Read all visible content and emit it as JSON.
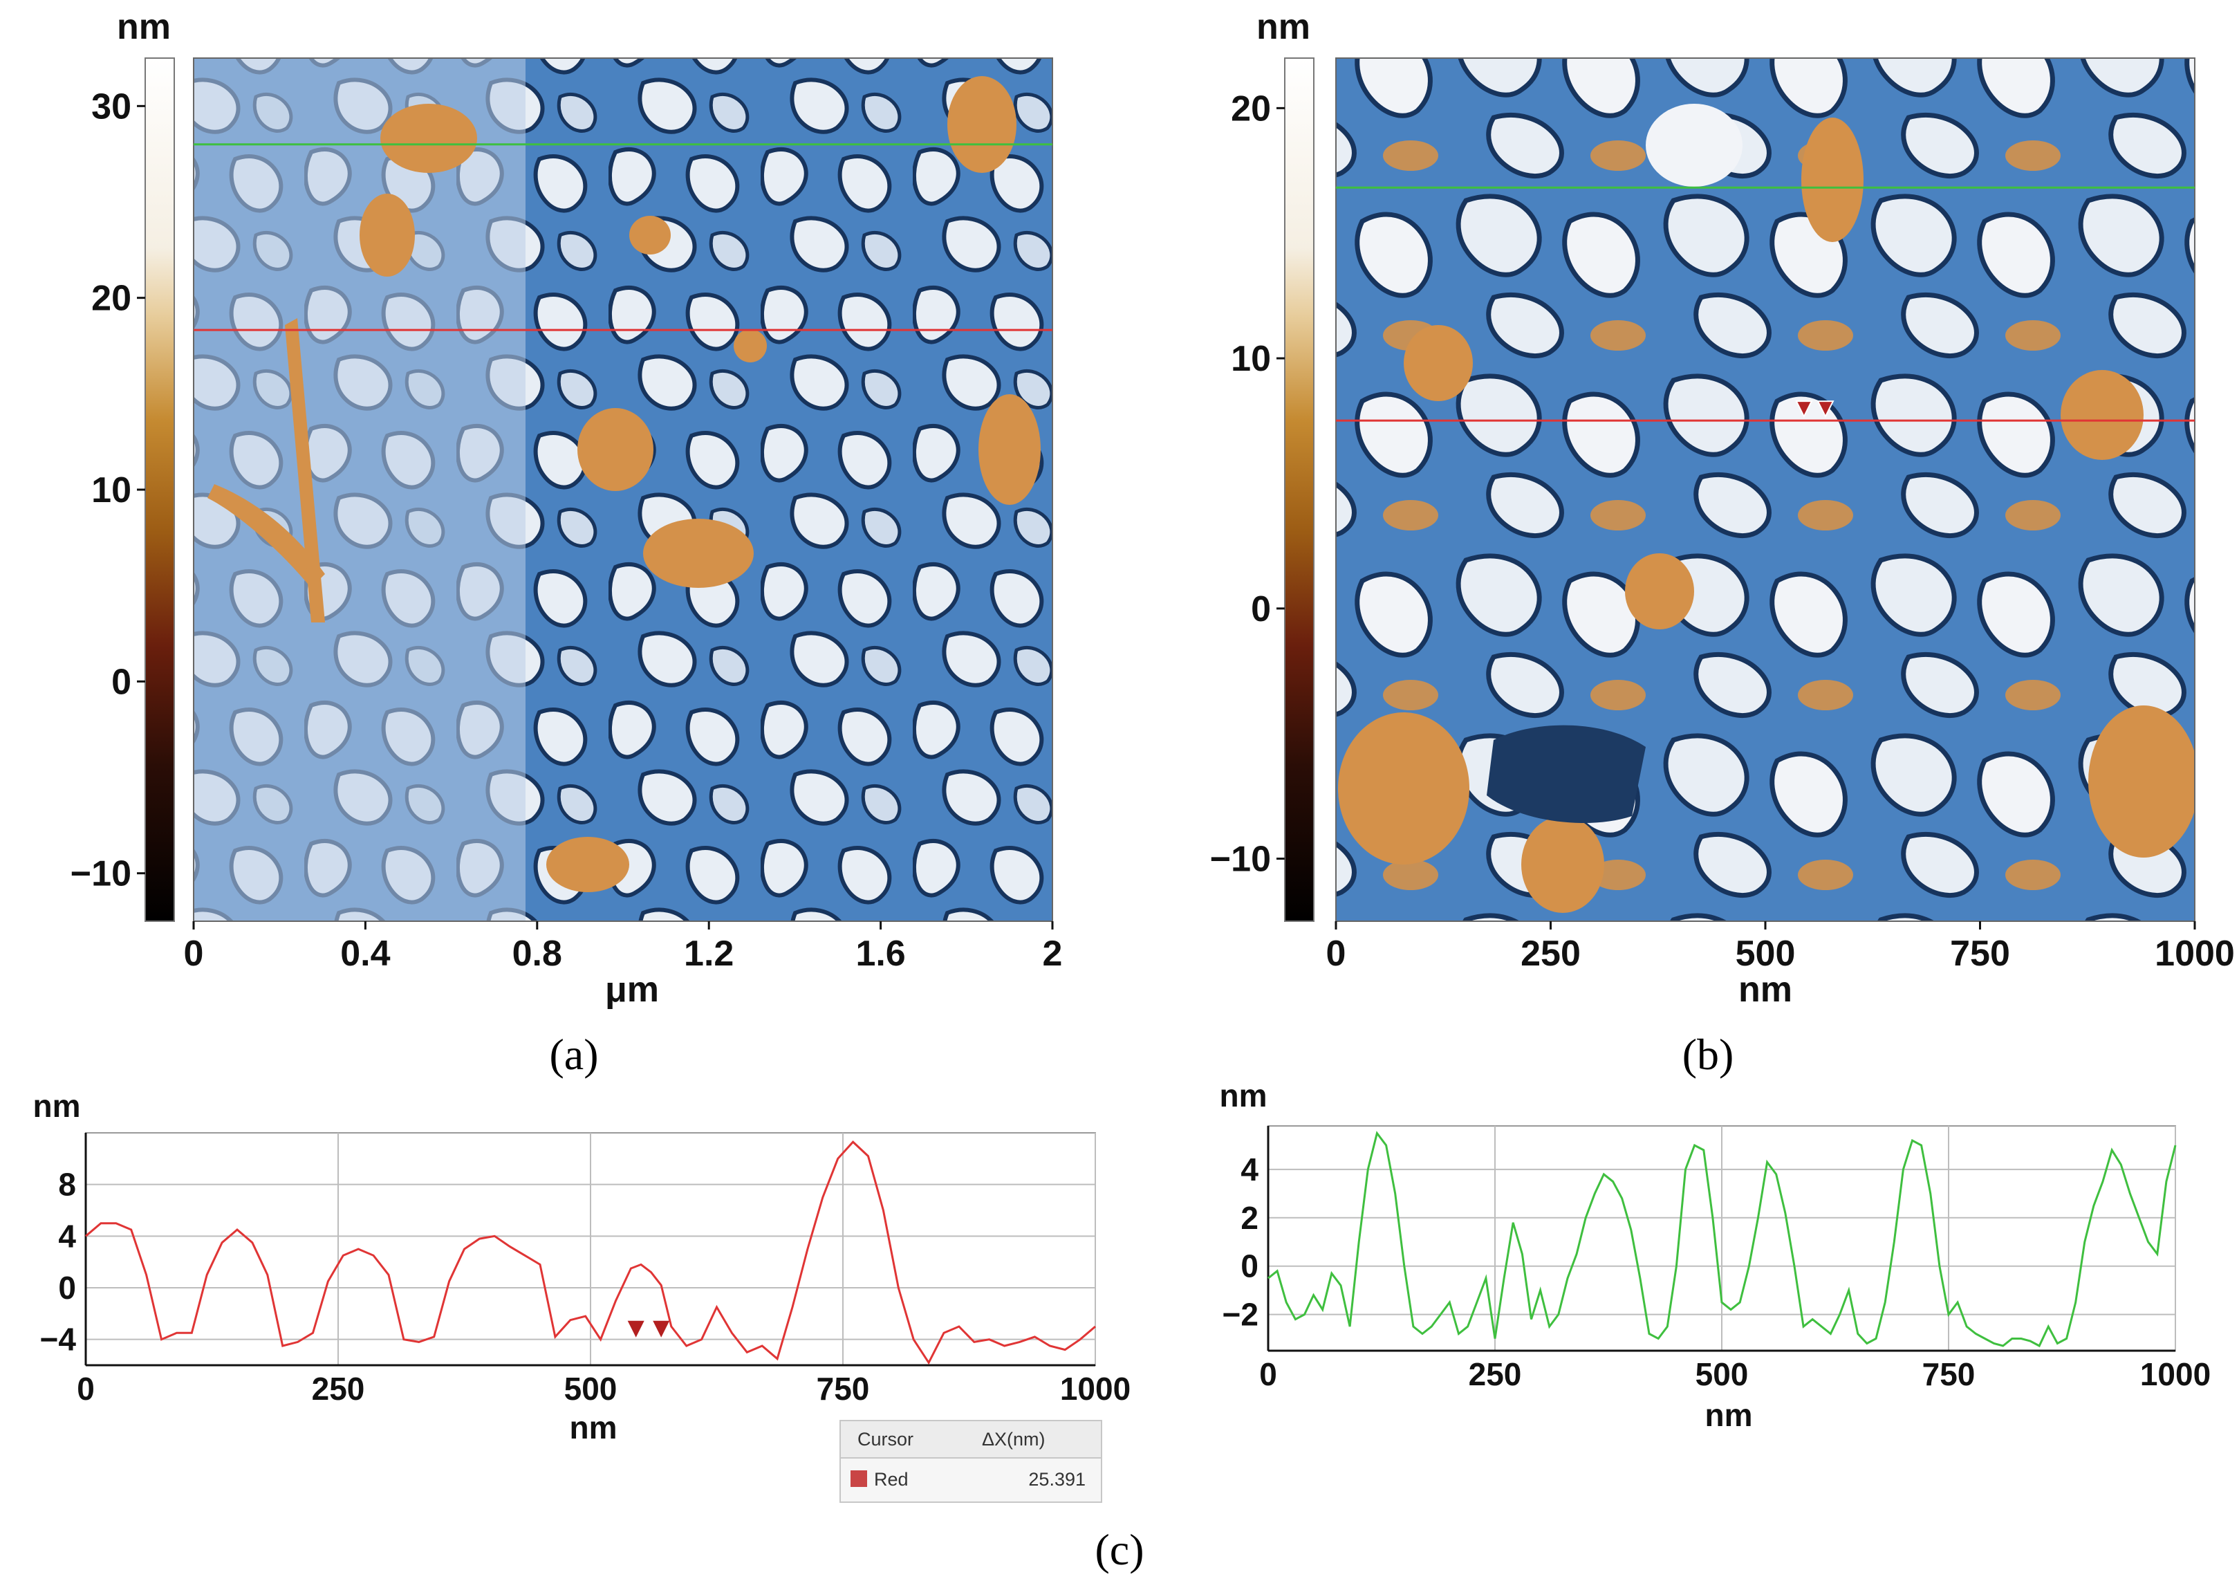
{
  "figure": {
    "panel_labels": [
      "(a)",
      "(b)",
      "(c)"
    ],
    "colors": {
      "afm_blue": "#4a82c0",
      "afm_dark_blue": "#17345d",
      "afm_light": "#e8eef5",
      "afm_orange": "#d4914a",
      "red_line": "#e03535",
      "green_line": "#3fbf3f",
      "grid": "#bdbdbd"
    }
  },
  "chart_data": [
    {
      "id": "a",
      "type": "heatmap",
      "title": "",
      "xlabel": "μm",
      "colorbar_label": "nm",
      "x_ticks": [
        "0",
        "0.4",
        "0.8",
        "1.2",
        "1.6",
        "2"
      ],
      "x_tick_values": [
        0,
        0.4,
        0.8,
        1.2,
        1.6,
        2.0
      ],
      "xlim": [
        0,
        2
      ],
      "colorbar_ticks": [
        "30",
        "20",
        "10",
        "0",
        "−10"
      ],
      "colorbar_tick_values": [
        30,
        20,
        10,
        0,
        -10
      ],
      "colorbar_range": [
        -12.5,
        32.5
      ],
      "red_profile_line_fraction_from_top": 0.315,
      "green_profile_line_fraction_from_top": 0.1
    },
    {
      "id": "b",
      "type": "heatmap",
      "title": "",
      "xlabel": "nm",
      "colorbar_label": "nm",
      "x_ticks": [
        "0",
        "250",
        "500",
        "750",
        "1000"
      ],
      "x_tick_values": [
        0,
        250,
        500,
        750,
        1000
      ],
      "xlim": [
        0,
        1000
      ],
      "colorbar_ticks": [
        "20",
        "10",
        "0",
        "−10"
      ],
      "colorbar_tick_values": [
        20,
        10,
        0,
        -10
      ],
      "colorbar_range": [
        -12.5,
        22
      ],
      "red_profile_line_fraction_from_top": 0.42,
      "green_profile_line_fraction_from_top": 0.15,
      "cursor_markers_nm": [
        545,
        570
      ]
    },
    {
      "id": "c-left",
      "type": "line",
      "title": "",
      "xlabel": "nm",
      "ylabel": "nm",
      "x_ticks": [
        "0",
        "250",
        "500",
        "750",
        "1000"
      ],
      "x_tick_values": [
        0,
        250,
        500,
        750,
        1000
      ],
      "y_ticks": [
        "8",
        "4",
        "0",
        "−4"
      ],
      "y_tick_values": [
        8,
        4,
        0,
        -4
      ],
      "xlim": [
        0,
        1000
      ],
      "ylim": [
        -6,
        12
      ],
      "grid": true,
      "series": [
        {
          "name": "Red",
          "color": "#e03535",
          "x": [
            0,
            15,
            30,
            45,
            60,
            75,
            90,
            105,
            120,
            135,
            150,
            165,
            180,
            195,
            210,
            225,
            240,
            255,
            270,
            285,
            300,
            315,
            330,
            345,
            360,
            375,
            390,
            405,
            420,
            435,
            450,
            465,
            480,
            495,
            510,
            525,
            540,
            550,
            560,
            570,
            580,
            595,
            610,
            625,
            640,
            655,
            670,
            685,
            700,
            715,
            730,
            745,
            760,
            775,
            790,
            805,
            820,
            835,
            850,
            865,
            880,
            895,
            910,
            925,
            940,
            955,
            970,
            985,
            1000
          ],
          "y": [
            4,
            5,
            5,
            4.5,
            1,
            -4,
            -3.5,
            -3.5,
            1,
            3.5,
            4.5,
            3.5,
            1,
            -4.5,
            -4.2,
            -3.5,
            0.5,
            2.5,
            3,
            2.5,
            1,
            -4,
            -4.2,
            -3.8,
            0.5,
            3,
            3.8,
            4,
            3.2,
            2.5,
            1.8,
            -3.8,
            -2.5,
            -2.2,
            -4,
            -1,
            1.5,
            1.8,
            1.2,
            0.2,
            -3,
            -4.5,
            -4,
            -1.5,
            -3.5,
            -5,
            -4.5,
            -5.5,
            -1.5,
            3,
            7,
            10,
            11.3,
            10.2,
            6,
            0,
            -4,
            -5.8,
            -3.5,
            -3,
            -4.2,
            -4,
            -4.5,
            -4.2,
            -3.8,
            -4.5,
            -4.8,
            -4,
            -3
          ],
          "points_note": "dense line"
        }
      ],
      "cursor_markers_nm": [
        545,
        570
      ],
      "cursor_table": {
        "headers": [
          "Cursor",
          "ΔX(nm)"
        ],
        "row": {
          "name": "Red",
          "value": "25.391"
        }
      }
    },
    {
      "id": "c-right",
      "type": "line",
      "title": "",
      "xlabel": "nm",
      "ylabel": "nm",
      "x_ticks": [
        "0",
        "250",
        "500",
        "750",
        "1000"
      ],
      "x_tick_values": [
        0,
        250,
        500,
        750,
        1000
      ],
      "y_ticks": [
        "4",
        "2",
        "0",
        "−2"
      ],
      "y_tick_values": [
        4,
        2,
        0,
        -2
      ],
      "xlim": [
        0,
        1000
      ],
      "ylim": [
        -3.5,
        5.8
      ],
      "grid": true,
      "series": [
        {
          "name": "Green",
          "color": "#3fbf3f",
          "x": [
            0,
            10,
            20,
            30,
            40,
            50,
            60,
            70,
            80,
            90,
            100,
            110,
            120,
            130,
            140,
            150,
            160,
            170,
            180,
            190,
            200,
            210,
            220,
            230,
            240,
            250,
            260,
            270,
            280,
            290,
            300,
            310,
            320,
            330,
            340,
            350,
            360,
            370,
            380,
            390,
            400,
            410,
            420,
            430,
            440,
            450,
            460,
            470,
            480,
            490,
            500,
            510,
            520,
            530,
            540,
            550,
            560,
            570,
            580,
            590,
            600,
            610,
            620,
            630,
            640,
            650,
            660,
            670,
            680,
            690,
            700,
            710,
            720,
            730,
            740,
            750,
            760,
            770,
            780,
            790,
            800,
            810,
            820,
            830,
            840,
            850,
            860,
            870,
            880,
            890,
            900,
            910,
            920,
            930,
            940,
            950,
            960,
            970,
            980,
            990,
            1000
          ],
          "y": [
            -0.5,
            -0.2,
            -1.5,
            -2.2,
            -2,
            -1.2,
            -1.8,
            -0.3,
            -0.8,
            -2.5,
            1,
            4,
            5.5,
            5,
            3,
            0,
            -2.5,
            -2.8,
            -2.5,
            -2,
            -1.5,
            -2.8,
            -2.5,
            -1.5,
            -0.5,
            -3,
            -0.5,
            1.8,
            0.5,
            -2.2,
            -1,
            -2.5,
            -2,
            -0.5,
            0.5,
            2,
            3,
            3.8,
            3.5,
            2.8,
            1.5,
            -0.5,
            -2.8,
            -3,
            -2.5,
            0,
            4,
            5,
            4.8,
            2,
            -1.5,
            -1.8,
            -1.5,
            0,
            2,
            4.3,
            3.8,
            2.2,
            0,
            -2.5,
            -2.2,
            -2.5,
            -2.8,
            -2,
            -1,
            -2.8,
            -3.2,
            -3,
            -1.5,
            1,
            4,
            5.2,
            5,
            3,
            0,
            -2,
            -1.5,
            -2.5,
            -2.8,
            -3,
            -3.2,
            -3.3,
            -3,
            -3,
            -3.1,
            -3.3,
            -2.5,
            -3.2,
            -3,
            -1.5,
            1,
            2.5,
            3.5,
            4.8,
            4.2,
            3,
            2,
            1,
            0.5,
            3.5,
            5
          ],
          "points_note": "dense line"
        }
      ]
    }
  ]
}
